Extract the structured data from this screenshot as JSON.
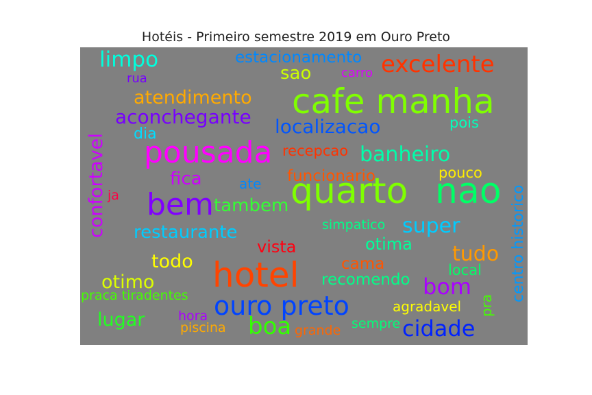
{
  "chart_data": {
    "type": "wordcloud",
    "title": "Hotéis - Primeiro semestre 2019 em Ouro Preto",
    "background": "#808080",
    "words": [
      {
        "text": "quarto",
        "color": "#7fff00"
      },
      {
        "text": "nao",
        "color": "#00ff66"
      },
      {
        "text": "cafe manha",
        "color": "#80ff00"
      },
      {
        "text": "hotel",
        "color": "#ff4400"
      },
      {
        "text": "pousada",
        "color": "#ff00ff"
      },
      {
        "text": "ouro preto",
        "color": "#0044ff"
      },
      {
        "text": "bem",
        "color": "#8000ff"
      },
      {
        "text": "excelente",
        "color": "#ff3300"
      },
      {
        "text": "localizacao",
        "color": "#0055ff"
      },
      {
        "text": "boa",
        "color": "#33ff00"
      },
      {
        "text": "cidade",
        "color": "#0022ff"
      },
      {
        "text": "limpo",
        "color": "#00ffdd"
      },
      {
        "text": "atendimento",
        "color": "#ffaa00"
      },
      {
        "text": "banheiro",
        "color": "#00ffaa"
      },
      {
        "text": "aconchegante",
        "color": "#7700ff"
      },
      {
        "text": "confortavel",
        "color": "#cc00ff"
      },
      {
        "text": "restaurante",
        "color": "#00ccff"
      },
      {
        "text": "super",
        "color": "#00ccff"
      },
      {
        "text": "tambem",
        "color": "#33ff33"
      },
      {
        "text": "tudo",
        "color": "#ff9900"
      },
      {
        "text": "bom",
        "color": "#aa00ff"
      },
      {
        "text": "centro historico",
        "color": "#0099ff"
      },
      {
        "text": "estacionamento",
        "color": "#0088ff"
      },
      {
        "text": "fica",
        "color": "#cc00ff"
      },
      {
        "text": "todo",
        "color": "#ffff00"
      },
      {
        "text": "otimo",
        "color": "#ddff00"
      },
      {
        "text": "sao",
        "color": "#ccff00"
      },
      {
        "text": "vista",
        "color": "#ff0011"
      },
      {
        "text": "otima",
        "color": "#00ff99"
      },
      {
        "text": "lugar",
        "color": "#22ff22"
      },
      {
        "text": "recomendo",
        "color": "#00ff88"
      },
      {
        "text": "funcionario",
        "color": "#ff5500"
      },
      {
        "text": "recepcao",
        "color": "#ff3300"
      },
      {
        "text": "cama",
        "color": "#ff5500"
      },
      {
        "text": "pouco",
        "color": "#ffee00"
      },
      {
        "text": "pra",
        "color": "#44ff00"
      },
      {
        "text": "local",
        "color": "#00ff66"
      },
      {
        "text": "dia",
        "color": "#00ddff"
      },
      {
        "text": "pois",
        "color": "#00ffbb"
      },
      {
        "text": "ate",
        "color": "#0088ff"
      },
      {
        "text": "simpatico",
        "color": "#00ff88"
      },
      {
        "text": "agradavel",
        "color": "#ffff00"
      },
      {
        "text": "praca tiradentes",
        "color": "#44ff00"
      },
      {
        "text": "hora",
        "color": "#aa00ff"
      },
      {
        "text": "piscina",
        "color": "#ffaa00"
      },
      {
        "text": "grande",
        "color": "#ff6600"
      },
      {
        "text": "sempre",
        "color": "#00ff77"
      },
      {
        "text": "carro",
        "color": "#dd00ff"
      },
      {
        "text": "rua",
        "color": "#7700ff"
      },
      {
        "text": "ja",
        "color": "#ff0044"
      }
    ]
  }
}
